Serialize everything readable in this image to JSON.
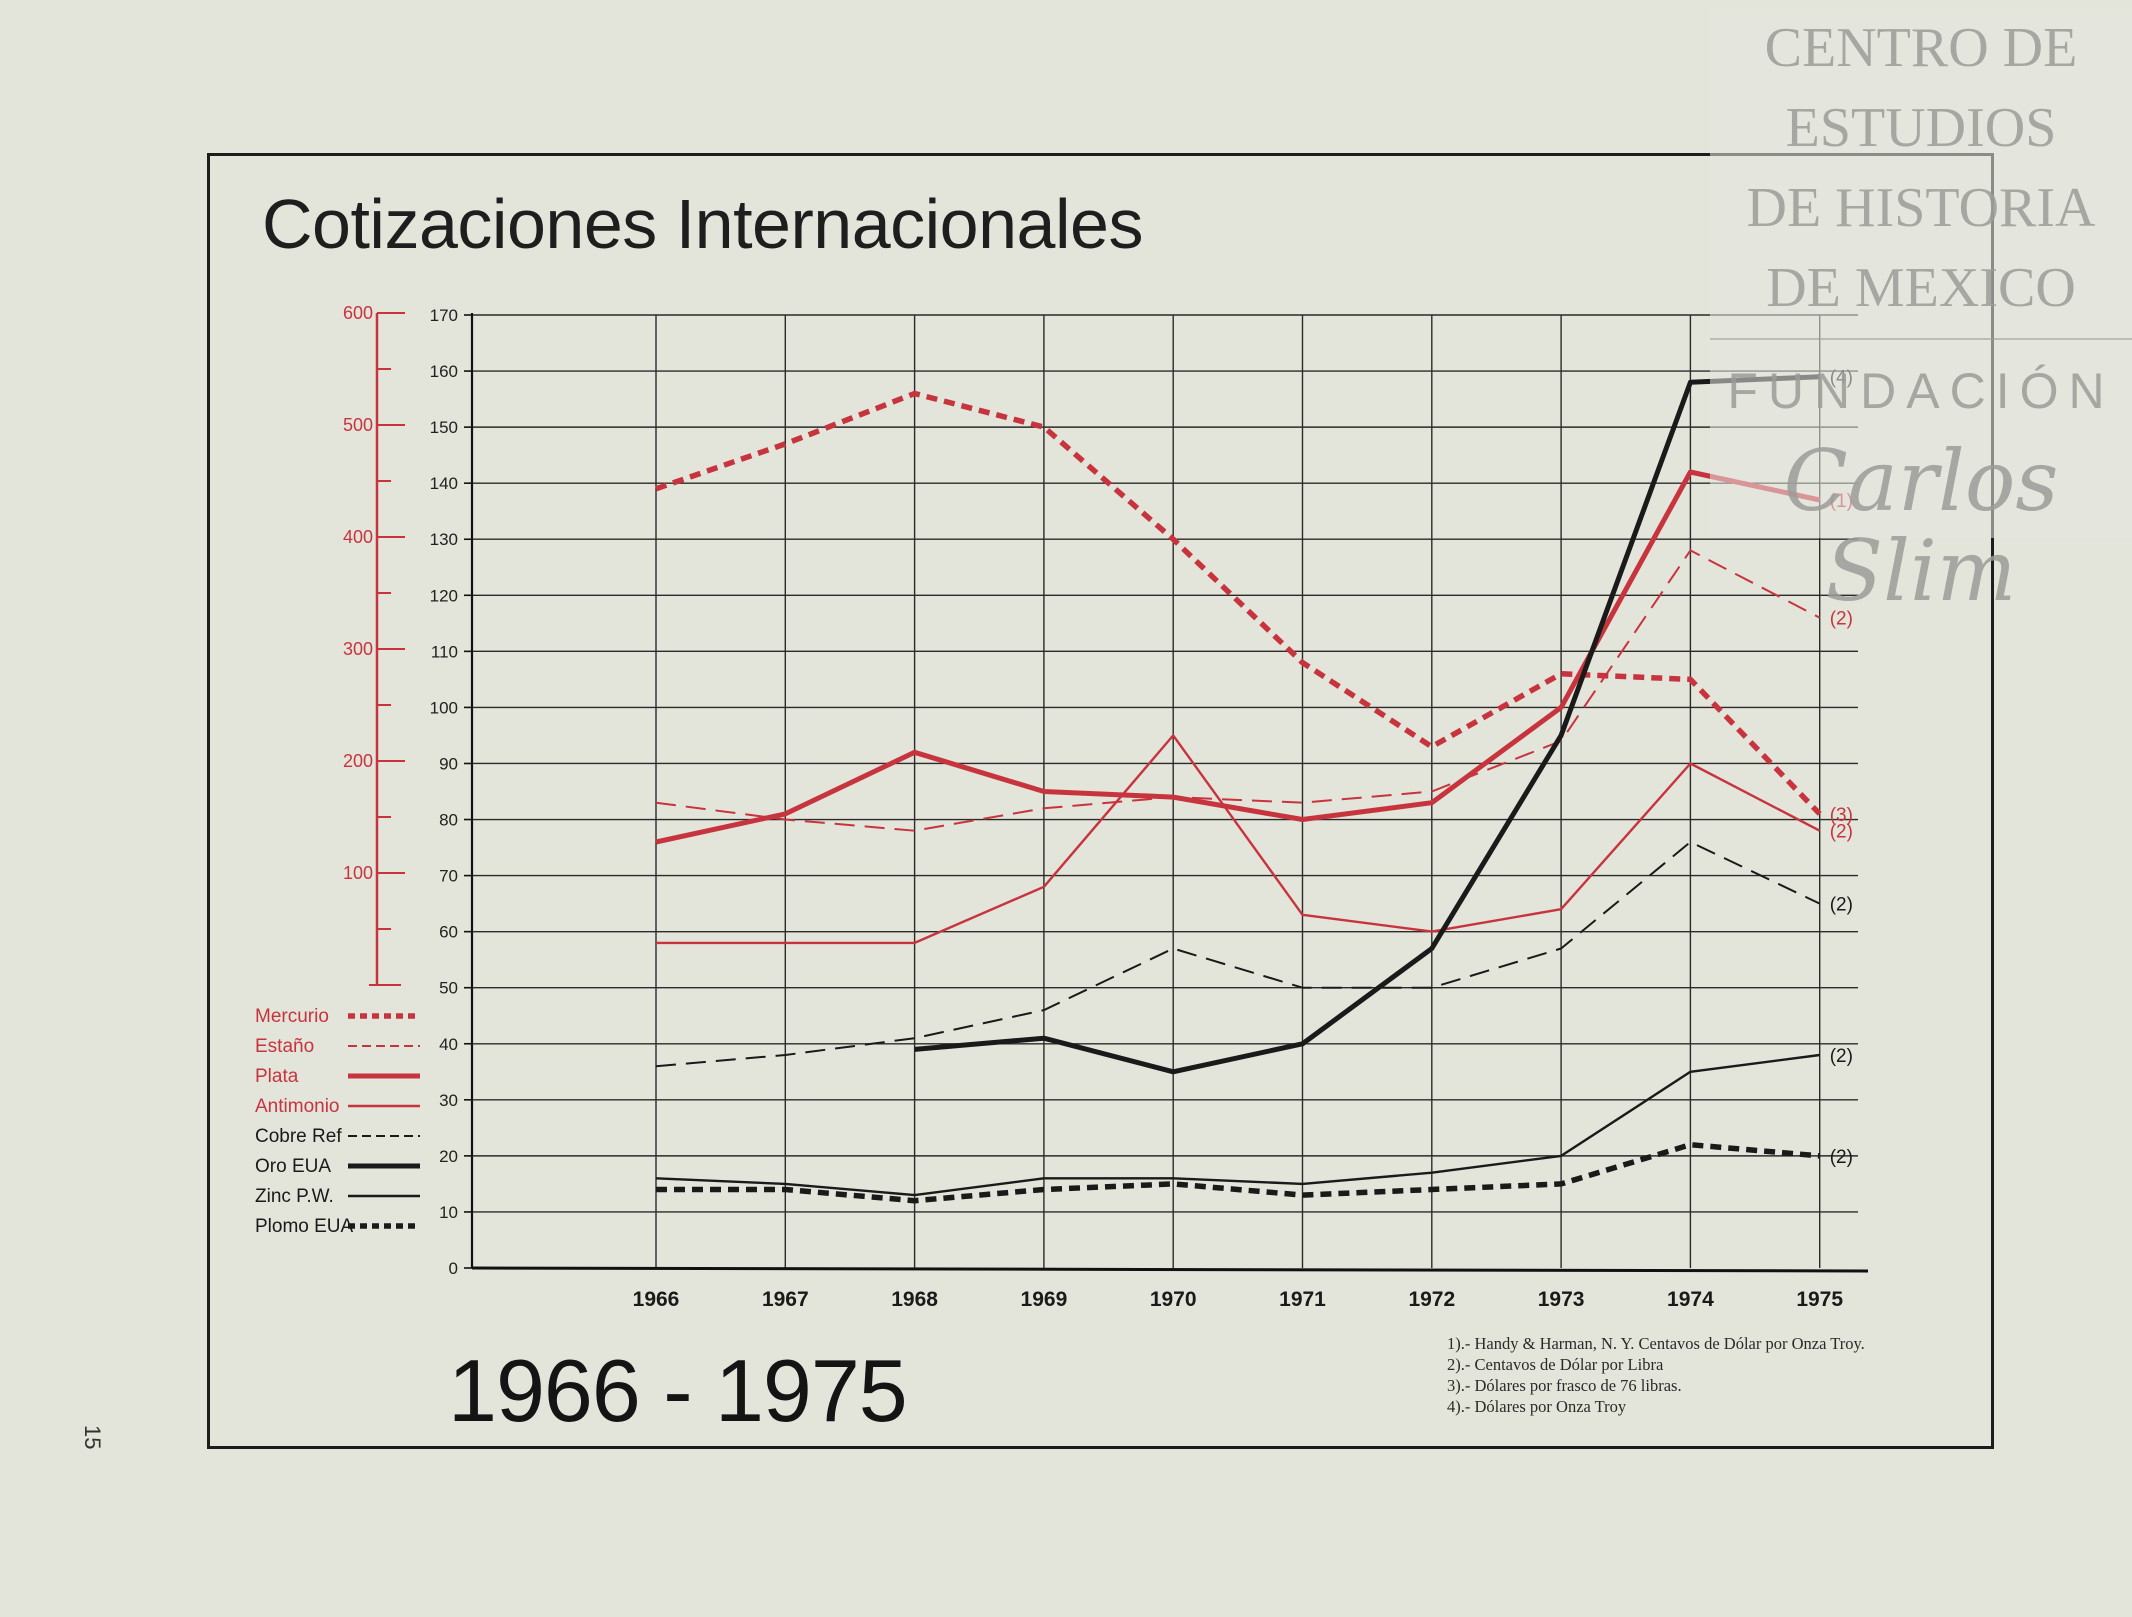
{
  "title": "Cotizaciones Internacionales",
  "date_range": "1966 - 1975",
  "page_number": "15",
  "watermark": {
    "lines": [
      "CENTRO DE",
      "ESTUDIOS",
      "DE HISTORIA",
      "DE MEXICO"
    ],
    "foundation": "FUNDACIÓN",
    "signature": "Carlos Slim"
  },
  "footnotes": [
    "1).- Handy & Harman, N. Y. Centavos de Dólar por Onza Troy.",
    "2).- Centavos de Dólar por Libra",
    "3).- Dólares por frasco de 76 libras.",
    "4).- Dólares por Onza Troy"
  ],
  "colors": {
    "red": "#c8343e",
    "black": "#1a1a1a"
  },
  "chart_data": {
    "type": "line",
    "categories": [
      "1966",
      "1967",
      "1968",
      "1969",
      "1970",
      "1971",
      "1972",
      "1973",
      "1974",
      "1975"
    ],
    "y_left": {
      "range": [
        0,
        170
      ],
      "ticks": [
        0,
        10,
        20,
        30,
        40,
        50,
        60,
        70,
        80,
        90,
        100,
        110,
        120,
        130,
        140,
        150,
        160,
        170
      ]
    },
    "y_secondary": {
      "range": [
        0,
        600
      ],
      "ticks": [
        100,
        200,
        300,
        400,
        500,
        600
      ],
      "color": "#c8343e"
    },
    "grid": true,
    "legend_position": "left",
    "series": [
      {
        "name": "Mercurio",
        "color": "#c8343e",
        "style": "thick-dotted",
        "end_label": "(3)",
        "values": [
          139,
          147,
          156,
          150,
          130,
          108,
          93,
          106,
          105,
          81
        ]
      },
      {
        "name": "Estaño",
        "color": "#c8343e",
        "style": "dashed",
        "end_label": "(2)",
        "values": [
          83,
          80,
          78,
          82,
          84,
          83,
          85,
          94,
          128,
          116
        ]
      },
      {
        "name": "Plata",
        "color": "#c8343e",
        "style": "thick-solid",
        "end_label": "(1)",
        "values": [
          76,
          81,
          92,
          85,
          84,
          80,
          83,
          100,
          142,
          137
        ]
      },
      {
        "name": "Antimonio",
        "color": "#c8343e",
        "style": "solid",
        "end_label": "(2)",
        "values": [
          58,
          58,
          58,
          68,
          95,
          63,
          60,
          64,
          90,
          78
        ]
      },
      {
        "name": "Cobre Ref",
        "color": "#1a1a1a",
        "style": "dashed",
        "end_label": "(2)",
        "values": [
          36,
          38,
          41,
          46,
          57,
          50,
          50,
          57,
          76,
          65
        ]
      },
      {
        "name": "Oro EUA",
        "color": "#1a1a1a",
        "style": "thick-solid",
        "end_label": "(4)",
        "values": [
          null,
          null,
          39,
          41,
          35,
          40,
          57,
          95,
          158,
          159
        ]
      },
      {
        "name": "Zinc P.W.",
        "color": "#1a1a1a",
        "style": "solid",
        "end_label": "(2)",
        "values": [
          16,
          15,
          13,
          16,
          16,
          15,
          17,
          20,
          35,
          38
        ]
      },
      {
        "name": "Plomo EUA",
        "color": "#1a1a1a",
        "style": "thick-dotted",
        "end_label": "(2)",
        "values": [
          14,
          14,
          12,
          14,
          15,
          13,
          14,
          15,
          22,
          20
        ]
      }
    ]
  }
}
